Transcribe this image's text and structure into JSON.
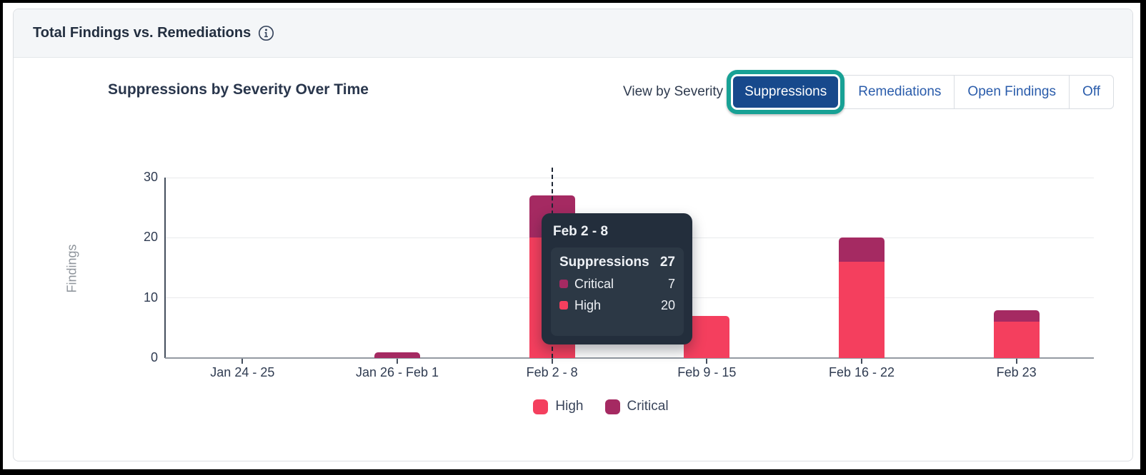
{
  "header": {
    "title": "Total Findings vs. Remediations",
    "info_icon": "info-icon"
  },
  "controls": {
    "view_by_label": "View by Severity",
    "buttons": [
      {
        "label": "Suppressions",
        "selected": true,
        "highlight_ring": true
      },
      {
        "label": "Remediations",
        "selected": false
      },
      {
        "label": "Open Findings",
        "selected": false
      },
      {
        "label": "Off",
        "selected": false
      }
    ]
  },
  "chart_data": {
    "type": "bar",
    "stacked": true,
    "title": "Suppressions by Severity Over Time",
    "categories": [
      "Jan 24 - 25",
      "Jan 26 - Feb 1",
      "Feb 2 - 8",
      "Feb 9 - 15",
      "Feb 16 - 22",
      "Feb 23"
    ],
    "series": [
      {
        "name": "High",
        "color": "#F43F5E",
        "values": [
          0,
          0,
          20,
          7,
          16,
          6
        ]
      },
      {
        "name": "Critical",
        "color": "#A52A62",
        "values": [
          0,
          1,
          7,
          0,
          4,
          2
        ]
      }
    ],
    "stack_order_bottom_to_top": [
      "High",
      "Critical"
    ],
    "ylabel": "Findings",
    "ylim": [
      0,
      30
    ],
    "yticks": [
      0,
      10,
      20,
      30
    ],
    "grid": "horizontal",
    "legend": [
      "High",
      "Critical"
    ],
    "legend_position": "bottom",
    "hovered_category": "Feb 2 - 8"
  },
  "tooltip": {
    "title": "Feb 2 - 8",
    "metric_label": "Suppressions",
    "metric_total": 27,
    "rows": [
      {
        "label": "Critical",
        "value": 7,
        "color": "#A52A62"
      },
      {
        "label": "High",
        "value": 20,
        "color": "#F43F5E"
      }
    ]
  },
  "colors": {
    "selected_button_bg": "#17498C",
    "button_text": "#2A5CAB",
    "highlight_ring": "#18A195",
    "high": "#F43F5E",
    "critical": "#A52A62",
    "tooltip_bg": "#232E3C",
    "header_bg": "#F4F6F8"
  }
}
